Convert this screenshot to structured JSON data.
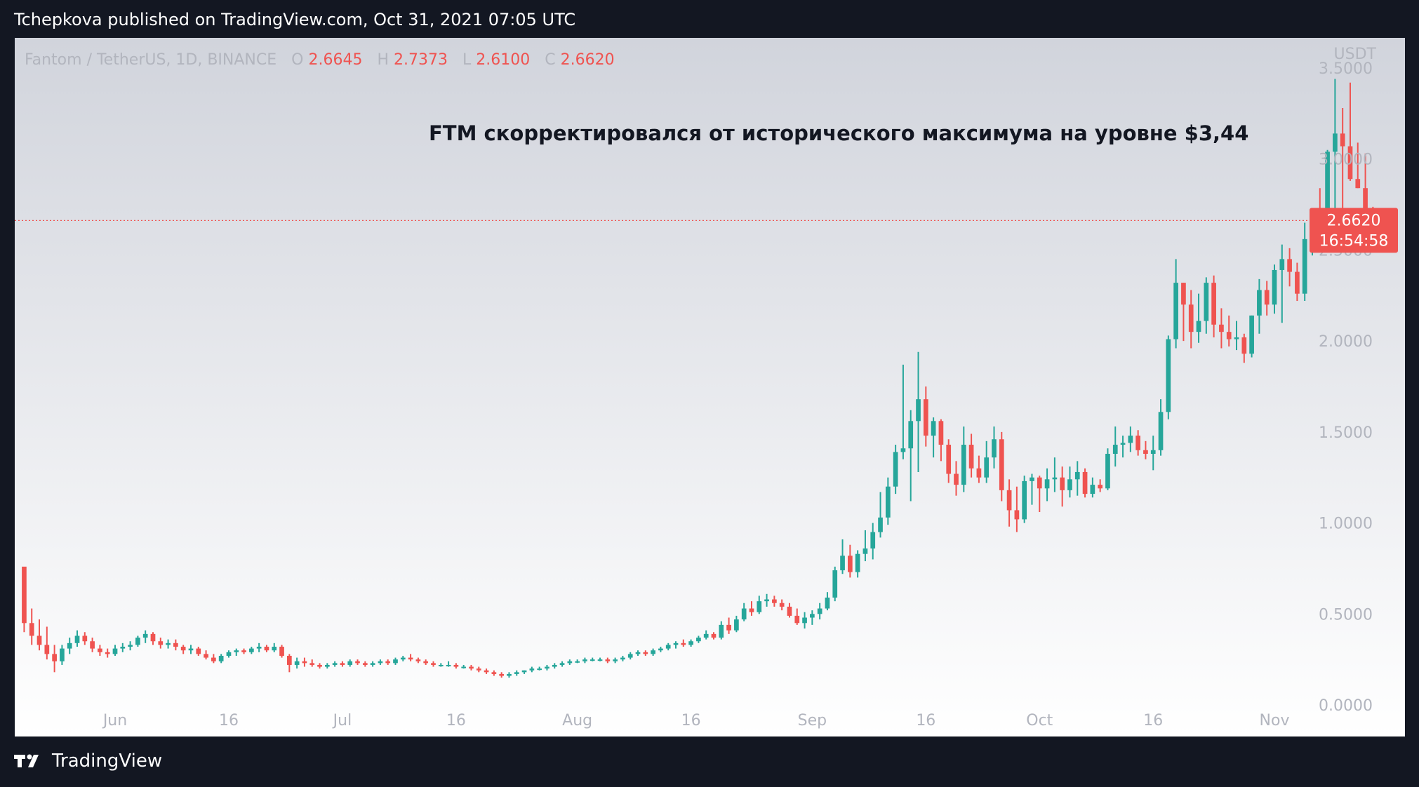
{
  "page": {
    "publish_line": "Tchepkova published on TradingView.com, Oct 31, 2021 07:05 UTC",
    "brand": "TradingView"
  },
  "colors": {
    "up": "#26a69a",
    "down": "#ef5350",
    "page_background": "#131722",
    "chart_background_top": "#d1d4dc",
    "chart_background_bottom": "#ffffff",
    "axis_text": "#b2b5be"
  },
  "chart_data": {
    "type": "candlestick",
    "symbol_line": {
      "symbol": "Fantom / TetherUS, 1D, BINANCE",
      "o_label": "O",
      "o_value": "2.6645",
      "h_label": "H",
      "h_value": "2.7373",
      "l_label": "L",
      "l_value": "2.6100",
      "c_label": "C",
      "c_value": "2.6620"
    },
    "annotation": "FTM скорректировался от исторического максимума на уровне $3,44",
    "y_unit": "USDT",
    "ylim": [
      -0.05,
      3.55
    ],
    "y_ticks": [
      "0.0000",
      "0.5000",
      "1.0000",
      "1.5000",
      "2.0000",
      "2.5000",
      "3.0000",
      "3.5000"
    ],
    "x_ticks": [
      "Jun",
      "16",
      "Jul",
      "16",
      "Aug",
      "16",
      "Sep",
      "16",
      "Oct",
      "16",
      "Nov"
    ],
    "x_tick_dates": [
      "2021-06-01",
      "2021-06-16",
      "2021-07-01",
      "2021-07-16",
      "2021-08-01",
      "2021-08-16",
      "2021-09-01",
      "2021-09-16",
      "2021-10-01",
      "2021-10-16",
      "2021-11-01"
    ],
    "last_price": {
      "label": "2.6620",
      "countdown": "16:54:58",
      "value": 2.662
    },
    "first_date": "2021-05-20",
    "candles": [
      [
        0.76,
        0.75,
        0.4,
        0.45
      ],
      [
        0.45,
        0.53,
        0.33,
        0.38
      ],
      [
        0.38,
        0.47,
        0.3,
        0.33
      ],
      [
        0.33,
        0.43,
        0.25,
        0.28
      ],
      [
        0.28,
        0.33,
        0.18,
        0.24
      ],
      [
        0.24,
        0.33,
        0.22,
        0.31
      ],
      [
        0.31,
        0.37,
        0.28,
        0.34
      ],
      [
        0.34,
        0.41,
        0.32,
        0.38
      ],
      [
        0.38,
        0.4,
        0.33,
        0.35
      ],
      [
        0.35,
        0.37,
        0.29,
        0.31
      ],
      [
        0.31,
        0.33,
        0.27,
        0.29
      ],
      [
        0.29,
        0.31,
        0.26,
        0.28
      ],
      [
        0.28,
        0.33,
        0.27,
        0.31
      ],
      [
        0.31,
        0.34,
        0.29,
        0.32
      ],
      [
        0.32,
        0.35,
        0.3,
        0.33
      ],
      [
        0.33,
        0.38,
        0.32,
        0.37
      ],
      [
        0.37,
        0.41,
        0.34,
        0.39
      ],
      [
        0.39,
        0.4,
        0.33,
        0.35
      ],
      [
        0.35,
        0.37,
        0.31,
        0.33
      ],
      [
        0.33,
        0.36,
        0.31,
        0.34
      ],
      [
        0.34,
        0.36,
        0.3,
        0.32
      ],
      [
        0.32,
        0.33,
        0.28,
        0.3
      ],
      [
        0.3,
        0.33,
        0.28,
        0.31
      ],
      [
        0.31,
        0.32,
        0.27,
        0.28
      ],
      [
        0.28,
        0.3,
        0.25,
        0.26
      ],
      [
        0.26,
        0.28,
        0.23,
        0.24
      ],
      [
        0.24,
        0.28,
        0.23,
        0.27
      ],
      [
        0.27,
        0.3,
        0.26,
        0.29
      ],
      [
        0.29,
        0.31,
        0.27,
        0.3
      ],
      [
        0.3,
        0.31,
        0.28,
        0.29
      ],
      [
        0.29,
        0.32,
        0.28,
        0.31
      ],
      [
        0.31,
        0.34,
        0.29,
        0.32
      ],
      [
        0.32,
        0.33,
        0.29,
        0.3
      ],
      [
        0.3,
        0.34,
        0.29,
        0.32
      ],
      [
        0.32,
        0.33,
        0.26,
        0.27
      ],
      [
        0.27,
        0.28,
        0.18,
        0.22
      ],
      [
        0.22,
        0.26,
        0.2,
        0.24
      ],
      [
        0.24,
        0.26,
        0.21,
        0.23
      ],
      [
        0.23,
        0.25,
        0.21,
        0.22
      ],
      [
        0.22,
        0.23,
        0.2,
        0.21
      ],
      [
        0.21,
        0.23,
        0.2,
        0.22
      ],
      [
        0.22,
        0.24,
        0.21,
        0.23
      ],
      [
        0.23,
        0.24,
        0.21,
        0.22
      ],
      [
        0.22,
        0.25,
        0.21,
        0.24
      ],
      [
        0.24,
        0.25,
        0.22,
        0.23
      ],
      [
        0.23,
        0.24,
        0.21,
        0.22
      ],
      [
        0.22,
        0.24,
        0.21,
        0.23
      ],
      [
        0.23,
        0.25,
        0.22,
        0.24
      ],
      [
        0.24,
        0.25,
        0.22,
        0.23
      ],
      [
        0.23,
        0.26,
        0.22,
        0.25
      ],
      [
        0.25,
        0.27,
        0.24,
        0.26
      ],
      [
        0.26,
        0.28,
        0.24,
        0.25
      ],
      [
        0.25,
        0.26,
        0.23,
        0.24
      ],
      [
        0.24,
        0.25,
        0.22,
        0.23
      ],
      [
        0.23,
        0.24,
        0.21,
        0.22
      ],
      [
        0.22,
        0.23,
        0.21,
        0.22
      ],
      [
        0.22,
        0.24,
        0.21,
        0.22
      ],
      [
        0.22,
        0.23,
        0.2,
        0.21
      ],
      [
        0.21,
        0.22,
        0.2,
        0.21
      ],
      [
        0.21,
        0.22,
        0.19,
        0.2
      ],
      [
        0.2,
        0.21,
        0.18,
        0.19
      ],
      [
        0.19,
        0.2,
        0.17,
        0.18
      ],
      [
        0.18,
        0.19,
        0.16,
        0.17
      ],
      [
        0.17,
        0.18,
        0.15,
        0.16
      ],
      [
        0.16,
        0.18,
        0.15,
        0.17
      ],
      [
        0.17,
        0.19,
        0.16,
        0.18
      ],
      [
        0.18,
        0.19,
        0.17,
        0.19
      ],
      [
        0.19,
        0.21,
        0.18,
        0.2
      ],
      [
        0.2,
        0.21,
        0.19,
        0.2
      ],
      [
        0.2,
        0.22,
        0.19,
        0.21
      ],
      [
        0.21,
        0.23,
        0.2,
        0.22
      ],
      [
        0.22,
        0.24,
        0.21,
        0.23
      ],
      [
        0.23,
        0.25,
        0.22,
        0.24
      ],
      [
        0.24,
        0.25,
        0.23,
        0.24
      ],
      [
        0.24,
        0.26,
        0.23,
        0.25
      ],
      [
        0.25,
        0.26,
        0.24,
        0.25
      ],
      [
        0.25,
        0.26,
        0.24,
        0.25
      ],
      [
        0.25,
        0.26,
        0.23,
        0.24
      ],
      [
        0.24,
        0.26,
        0.23,
        0.25
      ],
      [
        0.25,
        0.27,
        0.24,
        0.26
      ],
      [
        0.26,
        0.29,
        0.25,
        0.28
      ],
      [
        0.28,
        0.3,
        0.27,
        0.29
      ],
      [
        0.29,
        0.3,
        0.27,
        0.28
      ],
      [
        0.28,
        0.31,
        0.27,
        0.3
      ],
      [
        0.3,
        0.32,
        0.29,
        0.31
      ],
      [
        0.31,
        0.34,
        0.3,
        0.33
      ],
      [
        0.33,
        0.35,
        0.31,
        0.34
      ],
      [
        0.34,
        0.36,
        0.32,
        0.33
      ],
      [
        0.33,
        0.36,
        0.32,
        0.35
      ],
      [
        0.35,
        0.38,
        0.34,
        0.37
      ],
      [
        0.37,
        0.41,
        0.36,
        0.39
      ],
      [
        0.39,
        0.4,
        0.36,
        0.37
      ],
      [
        0.37,
        0.46,
        0.36,
        0.44
      ],
      [
        0.44,
        0.48,
        0.39,
        0.41
      ],
      [
        0.41,
        0.49,
        0.4,
        0.47
      ],
      [
        0.47,
        0.56,
        0.46,
        0.53
      ],
      [
        0.53,
        0.57,
        0.49,
        0.51
      ],
      [
        0.51,
        0.6,
        0.5,
        0.57
      ],
      [
        0.57,
        0.61,
        0.54,
        0.58
      ],
      [
        0.58,
        0.6,
        0.54,
        0.56
      ],
      [
        0.56,
        0.58,
        0.52,
        0.54
      ],
      [
        0.54,
        0.56,
        0.48,
        0.49
      ],
      [
        0.49,
        0.53,
        0.44,
        0.45
      ],
      [
        0.45,
        0.51,
        0.42,
        0.48
      ],
      [
        0.48,
        0.52,
        0.44,
        0.5
      ],
      [
        0.5,
        0.56,
        0.47,
        0.53
      ],
      [
        0.53,
        0.62,
        0.52,
        0.59
      ],
      [
        0.59,
        0.76,
        0.57,
        0.74
      ],
      [
        0.74,
        0.91,
        0.72,
        0.82
      ],
      [
        0.82,
        0.88,
        0.7,
        0.73
      ],
      [
        0.73,
        0.85,
        0.7,
        0.83
      ],
      [
        0.83,
        0.96,
        0.79,
        0.86
      ],
      [
        0.86,
        1.0,
        0.8,
        0.95
      ],
      [
        0.95,
        1.17,
        0.92,
        1.03
      ],
      [
        1.03,
        1.25,
        0.99,
        1.2
      ],
      [
        1.2,
        1.43,
        1.16,
        1.39
      ],
      [
        1.39,
        1.87,
        1.35,
        1.41
      ],
      [
        1.41,
        1.62,
        1.12,
        1.56
      ],
      [
        1.56,
        1.94,
        1.28,
        1.68
      ],
      [
        1.68,
        1.75,
        1.42,
        1.48
      ],
      [
        1.48,
        1.58,
        1.36,
        1.56
      ],
      [
        1.56,
        1.57,
        1.34,
        1.43
      ],
      [
        1.43,
        1.46,
        1.22,
        1.27
      ],
      [
        1.27,
        1.34,
        1.15,
        1.21
      ],
      [
        1.21,
        1.53,
        1.17,
        1.43
      ],
      [
        1.43,
        1.49,
        1.25,
        1.3
      ],
      [
        1.3,
        1.37,
        1.22,
        1.25
      ],
      [
        1.25,
        1.45,
        1.22,
        1.36
      ],
      [
        1.36,
        1.53,
        1.3,
        1.46
      ],
      [
        1.46,
        1.5,
        1.12,
        1.18
      ],
      [
        1.18,
        1.24,
        0.98,
        1.07
      ],
      [
        1.07,
        1.2,
        0.95,
        1.02
      ],
      [
        1.02,
        1.26,
        1.0,
        1.23
      ],
      [
        1.23,
        1.27,
        1.1,
        1.25
      ],
      [
        1.25,
        1.26,
        1.06,
        1.19
      ],
      [
        1.19,
        1.3,
        1.12,
        1.24
      ],
      [
        1.24,
        1.36,
        1.17,
        1.25
      ],
      [
        1.25,
        1.31,
        1.09,
        1.18
      ],
      [
        1.18,
        1.31,
        1.14,
        1.24
      ],
      [
        1.24,
        1.34,
        1.15,
        1.28
      ],
      [
        1.28,
        1.3,
        1.14,
        1.16
      ],
      [
        1.16,
        1.25,
        1.14,
        1.21
      ],
      [
        1.21,
        1.24,
        1.17,
        1.19
      ],
      [
        1.19,
        1.41,
        1.18,
        1.38
      ],
      [
        1.38,
        1.53,
        1.31,
        1.43
      ],
      [
        1.43,
        1.48,
        1.36,
        1.44
      ],
      [
        1.44,
        1.53,
        1.39,
        1.48
      ],
      [
        1.48,
        1.51,
        1.37,
        1.4
      ],
      [
        1.4,
        1.45,
        1.35,
        1.38
      ],
      [
        1.38,
        1.48,
        1.29,
        1.4
      ],
      [
        1.4,
        1.68,
        1.37,
        1.61
      ],
      [
        1.61,
        2.03,
        1.57,
        2.01
      ],
      [
        2.01,
        2.45,
        1.96,
        2.32
      ],
      [
        2.32,
        2.32,
        2.0,
        2.2
      ],
      [
        2.2,
        2.28,
        1.96,
        2.05
      ],
      [
        2.05,
        2.26,
        1.99,
        2.11
      ],
      [
        2.11,
        2.35,
        2.04,
        2.32
      ],
      [
        2.32,
        2.36,
        2.02,
        2.09
      ],
      [
        2.09,
        2.18,
        1.96,
        2.05
      ],
      [
        2.05,
        2.14,
        1.97,
        2.01
      ],
      [
        2.01,
        2.11,
        1.95,
        2.02
      ],
      [
        2.02,
        2.04,
        1.88,
        1.93
      ],
      [
        1.93,
        2.14,
        1.91,
        2.14
      ],
      [
        2.14,
        2.34,
        2.04,
        2.28
      ],
      [
        2.28,
        2.33,
        2.14,
        2.2
      ],
      [
        2.2,
        2.42,
        2.15,
        2.39
      ],
      [
        2.39,
        2.53,
        2.1,
        2.45
      ],
      [
        2.45,
        2.51,
        2.3,
        2.38
      ],
      [
        2.38,
        2.43,
        2.22,
        2.26
      ],
      [
        2.26,
        2.65,
        2.22,
        2.56
      ],
      [
        2.56,
        2.69,
        2.47,
        2.65
      ],
      [
        2.65,
        2.84,
        2.55,
        2.61
      ],
      [
        2.61,
        3.05,
        2.58,
        3.04
      ],
      [
        3.04,
        3.44,
        2.62,
        3.14
      ],
      [
        3.14,
        3.28,
        2.51,
        3.07
      ],
      [
        3.07,
        3.42,
        2.88,
        2.89
      ],
      [
        2.89,
        3.09,
        2.84,
        2.84
      ],
      [
        2.84,
        3.03,
        2.57,
        2.64
      ],
      [
        2.6645,
        2.7373,
        2.61,
        2.662
      ]
    ]
  }
}
